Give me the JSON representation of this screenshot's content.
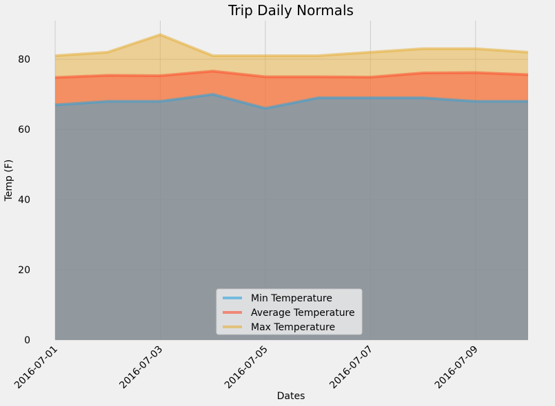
{
  "chart_data": {
    "type": "area",
    "title": "Trip Daily Normals",
    "xlabel": "Dates",
    "ylabel": "Temp (F)",
    "x": [
      "2016-07-01",
      "2016-07-02",
      "2016-07-03",
      "2016-07-04",
      "2016-07-05",
      "2016-07-06",
      "2016-07-07",
      "2016-07-08",
      "2016-07-09",
      "2016-07-10"
    ],
    "xtick_labels": [
      "2016-07-01",
      "2016-07-03",
      "2016-07-05",
      "2016-07-07",
      "2016-07-09"
    ],
    "yticks": [
      0,
      20,
      40,
      60,
      80
    ],
    "ylim": [
      0,
      91
    ],
    "grid": true,
    "legend_position": "bottom-center",
    "series": [
      {
        "name": "Min Temperature",
        "color": "#30a2da",
        "values": [
          67,
          68,
          68,
          70,
          66,
          69,
          69,
          69,
          68,
          68
        ]
      },
      {
        "name": "Average Temperature",
        "color": "#fc4f30",
        "values": [
          74.8,
          75.4,
          75.3,
          76.6,
          75.0,
          75.0,
          74.9,
          76.1,
          76.2,
          75.6
        ]
      },
      {
        "name": "Max Temperature",
        "color": "#e5ae38",
        "values": [
          81,
          82,
          87,
          81,
          81,
          81,
          82,
          83,
          83,
          82
        ]
      }
    ]
  }
}
